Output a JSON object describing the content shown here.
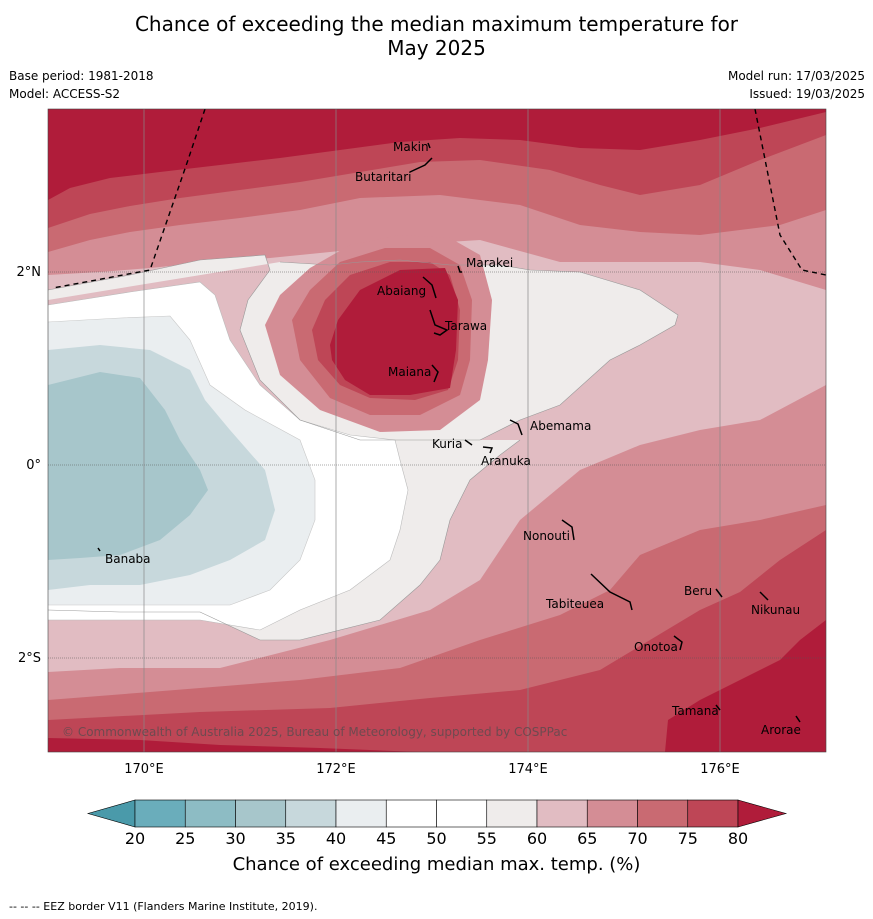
{
  "title_line1": "Chance of exceeding the median maximum temperature for",
  "title_line2": "May 2025",
  "base_period": "Base period: 1981-2018",
  "model": "Model: ACCESS-S2",
  "model_run": "Model run: 17/03/2025",
  "issued": "Issued: 19/03/2025",
  "copyright": "© Commonwealth of Australia 2025, Bureau of Meteorology, supported by COSPPac",
  "lon_labels": [
    "170°E",
    "172°E",
    "174°E",
    "176°E"
  ],
  "lat_labels": [
    "2°N",
    "0°",
    "2°S"
  ],
  "places": [
    "Makin",
    "Butaritari",
    "Marakei",
    "Abaiang",
    "Tarawa",
    "Maiana",
    "Abemama",
    "Kuria",
    "Aranuka",
    "Banaba",
    "Nonouti",
    "Tabiteuea",
    "Beru",
    "Nikunau",
    "Onotoa",
    "Tamana",
    "Arorae"
  ],
  "colorbar": {
    "ticks": [
      "20",
      "25",
      "30",
      "35",
      "40",
      "45",
      "50",
      "55",
      "60",
      "65",
      "70",
      "75",
      "80"
    ],
    "colors": [
      "#6aadbb",
      "#8dbcc4",
      "#a7c6cb",
      "#c7d8dc",
      "#eaeef0",
      "#ffffff",
      "#ffffff",
      "#efeceb",
      "#e1bcc2",
      "#d48d95",
      "#c96a72",
      "#be4656",
      "#b01c3a"
    ],
    "title": "Chance of exceeding median max. temp. (%)"
  },
  "footer": "-- -- -- EEZ border V11 (Flanders Marine Institute, 2019)."
}
